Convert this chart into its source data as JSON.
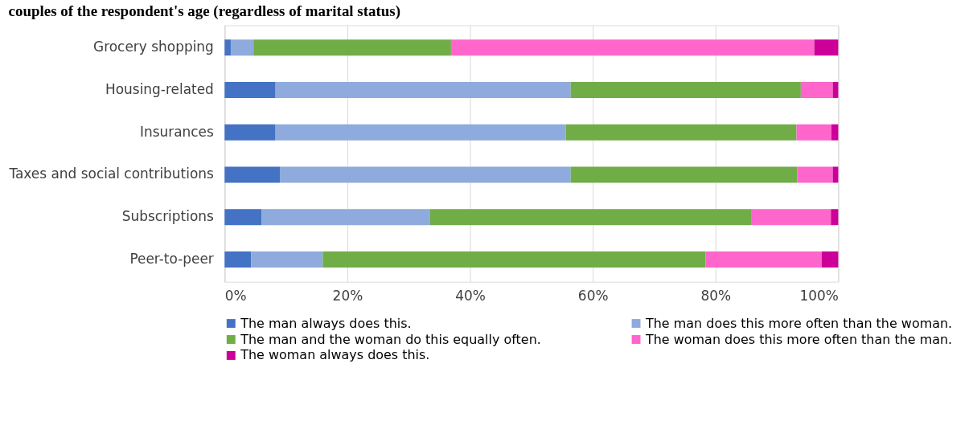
{
  "chart_data": {
    "type": "bar",
    "orientation": "horizontal",
    "stacked": true,
    "title": "couples of the respondent's age (regardless of marital status)",
    "categories": [
      "Grocery shopping",
      "Housing-related",
      "Insurances",
      "Taxes and social contributions",
      "Subscriptions",
      "Peer-to-peer"
    ],
    "series": [
      {
        "name": "The man always does this.",
        "color": "#4472c4",
        "values": [
          1.0,
          8.3,
          8.3,
          9.0,
          6.0,
          4.3
        ]
      },
      {
        "name": "The man does this more often than the woman.",
        "color": "#8faadc",
        "values": [
          3.7,
          48.1,
          47.3,
          47.4,
          27.5,
          11.7
        ]
      },
      {
        "name": "The man and the woman do this equally often.",
        "color": "#70ad47",
        "values": [
          32.2,
          37.5,
          37.6,
          36.9,
          52.4,
          62.4
        ]
      },
      {
        "name": "The woman does this more often than the man.",
        "color": "#ff66cc",
        "values": [
          59.2,
          5.2,
          5.7,
          5.8,
          12.9,
          18.9
        ]
      },
      {
        "name": "The woman always does this.",
        "color": "#cc0099",
        "values": [
          3.9,
          0.9,
          1.1,
          0.9,
          1.2,
          2.7
        ]
      }
    ],
    "xlim": [
      0,
      100
    ],
    "xticks": [
      {
        "value": 0,
        "label": "0%"
      },
      {
        "value": 20,
        "label": "20%"
      },
      {
        "value": 40,
        "label": "40%"
      },
      {
        "value": 60,
        "label": "60%"
      },
      {
        "value": 80,
        "label": "80%"
      },
      {
        "value": 100,
        "label": "100%"
      }
    ],
    "grid": "x",
    "legend": "bottom"
  }
}
